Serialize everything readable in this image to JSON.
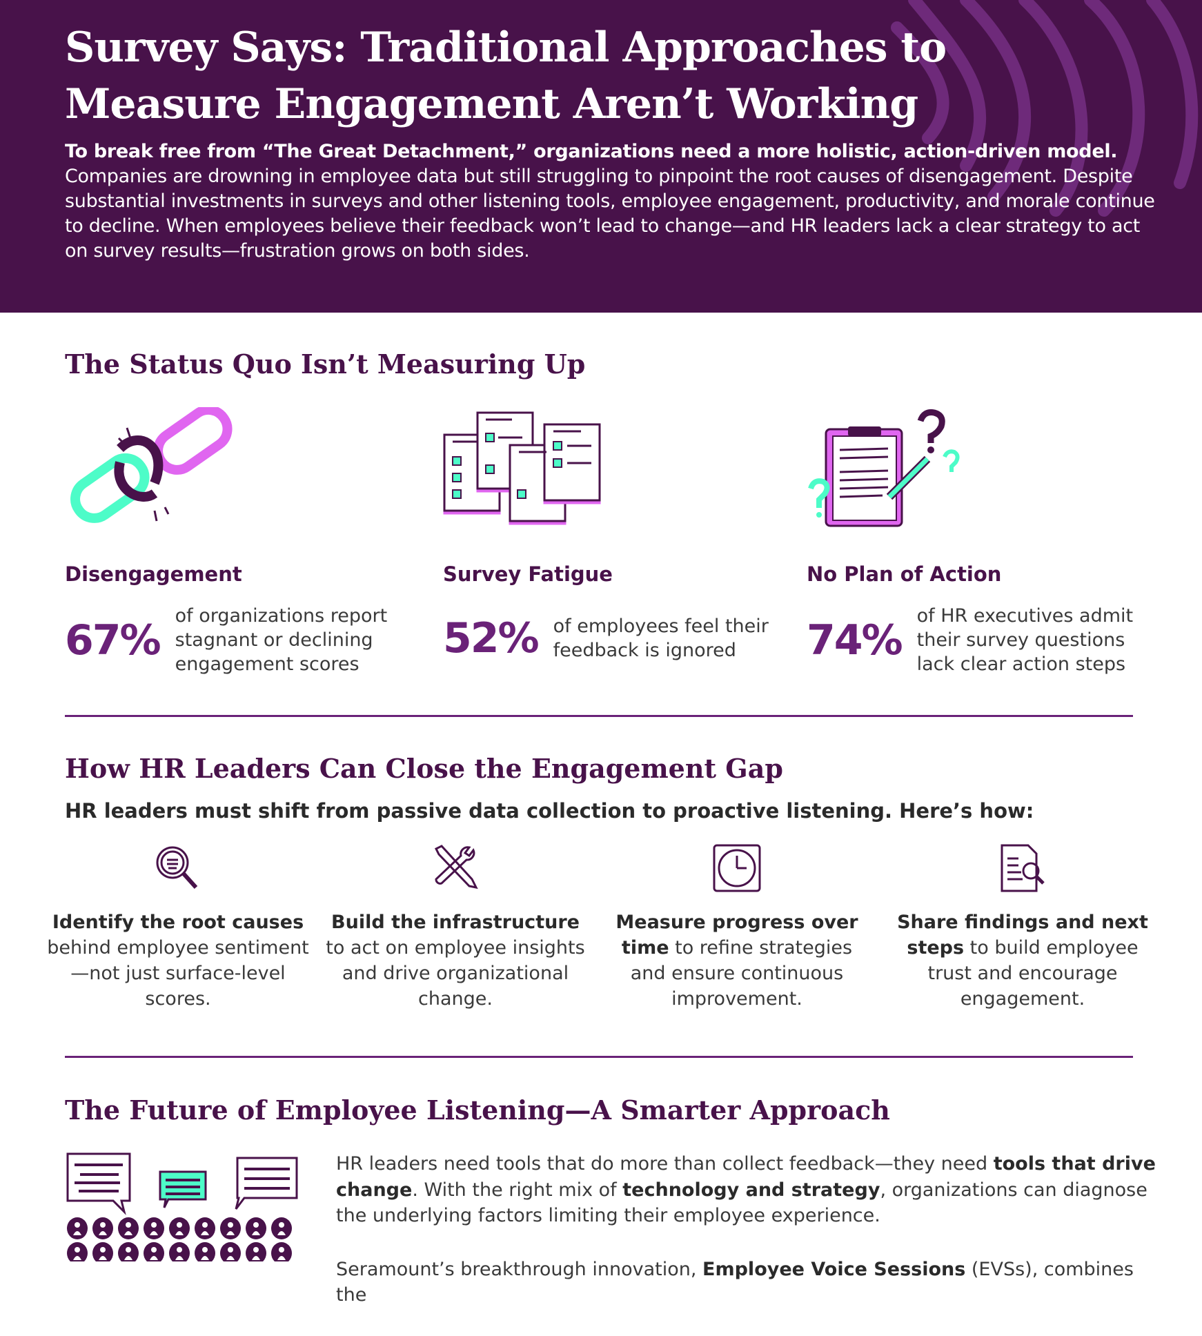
{
  "header": {
    "title_line1": "Survey Says: Traditional Approaches to",
    "title_line2": "Measure Engagement Aren’t Working",
    "intro_bold": "To break free from “The Great Detachment,” organizations need a more holistic, action-driven model.",
    "intro_rest": " Companies are drowning in employee data but still struggling to pinpoint the root causes of disengagement. Despite substantial investments in surveys and other listening tools, employee engagement, productivity, and morale continue to decline. When employees believe their feedback won’t lead to change—and HR leaders lack a clear strategy to act on survey results—frustration grows on both sides."
  },
  "status_quo": {
    "heading": "The Status Quo Isn’t Measuring Up",
    "items": [
      {
        "icon": "broken-chain-icon",
        "label": "Disengagement",
        "percent": "67%",
        "desc": "of organizations report stagnant or declining engagement scores"
      },
      {
        "icon": "survey-papers-icon",
        "label": "Survey Fatigue",
        "percent": "52%",
        "desc": "of employees feel their feedback is ignored"
      },
      {
        "icon": "clipboard-question-icon",
        "label": "No Plan of Action",
        "percent": "74%",
        "desc": "of HR executives admit their survey questions lack clear action steps"
      }
    ]
  },
  "close_gap": {
    "heading": "How HR Leaders Can Close the Engagement Gap",
    "subtitle": "HR leaders must shift from passive data collection to proactive listening. Here’s how:",
    "steps": [
      {
        "icon": "magnifier-icon",
        "bold": "Identify the root causes",
        "rest": " behind employee sentiment—not just surface-level scores."
      },
      {
        "icon": "tools-icon",
        "bold": "Build the infrastructure",
        "rest": " to act on employee insights and drive organizational change."
      },
      {
        "icon": "clock-icon",
        "bold": "Measure progress over time",
        "rest": " to refine strategies and ensure continuous improvement."
      },
      {
        "icon": "document-search-icon",
        "bold": "Share findings and next steps",
        "rest": " to build employee trust and encourage engagement."
      }
    ]
  },
  "future": {
    "heading": "The Future of Employee Listening—A Smarter Approach",
    "p1_a": "HR leaders need tools that do more than collect feedback—they need ",
    "p1_b": "tools that drive change",
    "p1_c": ". With the right mix of ",
    "p1_d": "technology and strategy",
    "p1_e": ", organizations can diagnose the underlying factors limiting their employee experience.",
    "p2_a": "Seramount’s breakthrough innovation, ",
    "p2_b": "Employee Voice Sessions",
    "p2_c": " (EVSs), combines the"
  },
  "colors": {
    "header_bg": "#48124a",
    "stripe": "#6e2a7a",
    "heading": "#48124a",
    "percent": "#6a2278",
    "magenta": "#e066f0",
    "teal": "#4dfcc8"
  }
}
